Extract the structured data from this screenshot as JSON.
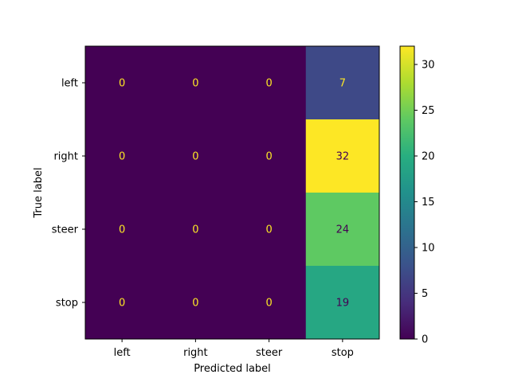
{
  "chart_data": {
    "type": "heatmap",
    "title": "",
    "xlabel": "Predicted label",
    "ylabel": "True label",
    "x_categories": [
      "left",
      "right",
      "steer",
      "stop"
    ],
    "y_categories": [
      "left",
      "right",
      "steer",
      "stop"
    ],
    "matrix": [
      [
        0,
        0,
        0,
        7
      ],
      [
        0,
        0,
        0,
        32
      ],
      [
        0,
        0,
        0,
        24
      ],
      [
        0,
        0,
        0,
        19
      ]
    ],
    "colormap": "viridis",
    "colorbar": {
      "range": [
        0,
        32
      ],
      "ticks": [
        0,
        5,
        10,
        15,
        20,
        25,
        30
      ]
    },
    "text_color_on_dark": "#fde725",
    "text_color_on_light": "#440154",
    "grid": false
  }
}
